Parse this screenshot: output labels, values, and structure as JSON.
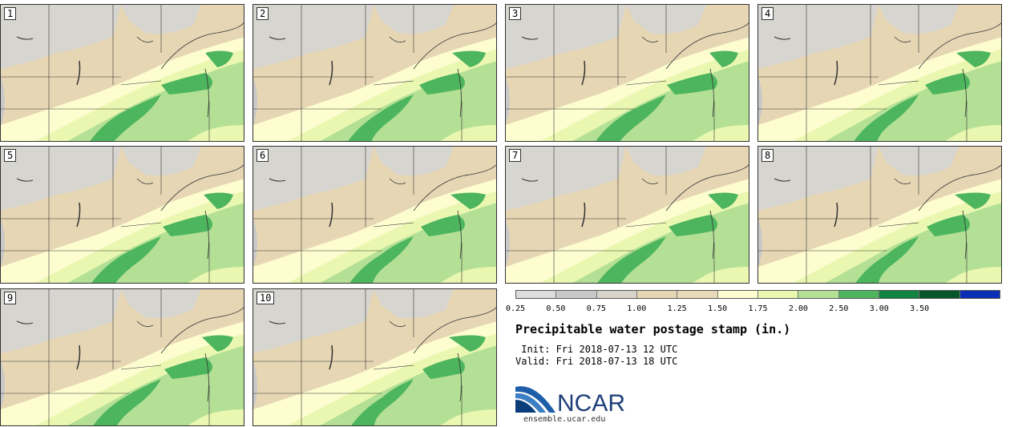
{
  "panels": [
    {
      "label": "1"
    },
    {
      "label": "2"
    },
    {
      "label": "3"
    },
    {
      "label": "4"
    },
    {
      "label": "5"
    },
    {
      "label": "6"
    },
    {
      "label": "7"
    },
    {
      "label": "8"
    },
    {
      "label": "9"
    },
    {
      "label": "10"
    }
  ],
  "colorbar": {
    "ticks": [
      "0.25",
      "0.50",
      "0.75",
      "1.00",
      "1.25",
      "1.50",
      "1.75",
      "2.00",
      "2.50",
      "3.00",
      "3.50"
    ],
    "colors": [
      "#dcdcdc",
      "#c8c8c8",
      "#d9d4c9",
      "#e6d6b4",
      "#e8d9b8",
      "#fdfdd0",
      "#eaf7b0",
      "#b4e096",
      "#4db55e",
      "#11843f",
      "#07552a",
      "#0a2eb4"
    ]
  },
  "title": "Precipitable water postage stamp (in.)",
  "init": " Init: Fri 2018-07-13 12 UTC",
  "valid": "Valid: Fri 2018-07-13 18 UTC",
  "logo_text": "NCAR",
  "site": "ensemble.ucar.edu"
}
